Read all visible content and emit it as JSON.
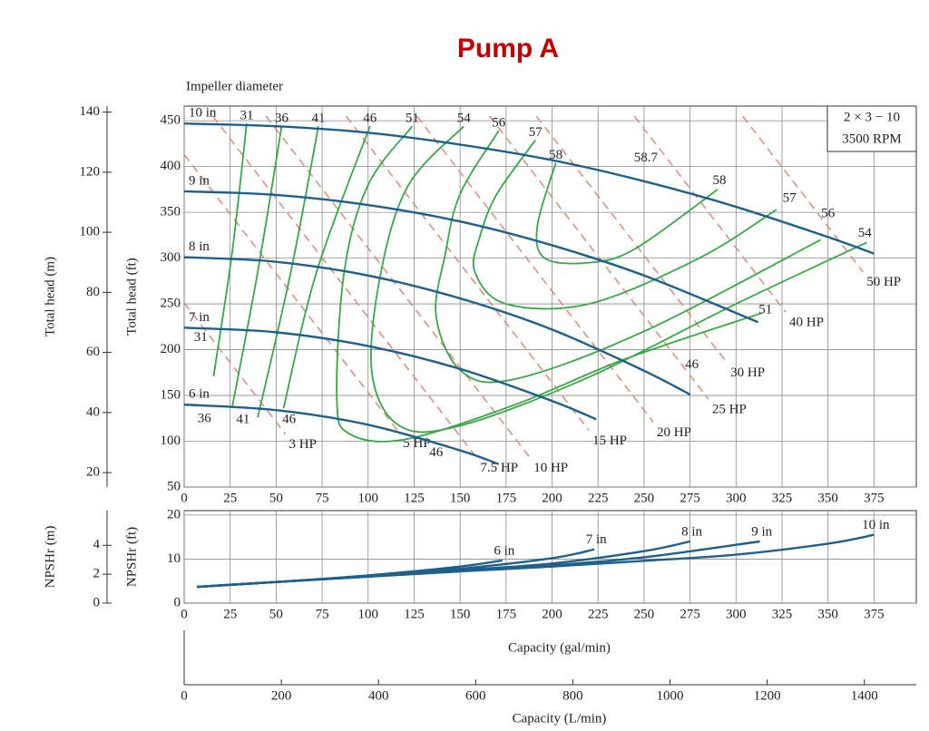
{
  "chart_data": [
    {
      "type": "line",
      "title": "Pump A",
      "note": "Impeller diameter",
      "model": [
        "2 × 3 − 10",
        "3500 RPM"
      ],
      "ylabel": "Total head (ft)",
      "y2label": "Total head (m)",
      "xlim": [
        0,
        398
      ],
      "xticks": [
        0,
        25,
        50,
        75,
        100,
        125,
        150,
        175,
        200,
        225,
        250,
        275,
        300,
        325,
        350,
        375
      ],
      "ylim": [
        50,
        466
      ],
      "yticks": [
        50,
        100,
        150,
        200,
        250,
        300,
        350,
        400,
        450
      ],
      "y2lim": [
        15.2,
        142
      ],
      "y2ticks": [
        20,
        40,
        60,
        80,
        100,
        120,
        140
      ],
      "grid": true,
      "series": [
        {
          "name": "10 in",
          "color": "#1f5f8b",
          "x": [
            0,
            50,
            100,
            150,
            200,
            250,
            300,
            350,
            375
          ],
          "values": [
            447,
            444,
            437,
            424,
            407,
            384,
            356,
            323,
            305
          ]
        },
        {
          "name": "9 in",
          "color": "#1f5f8b",
          "x": [
            0,
            50,
            100,
            150,
            200,
            250,
            312
          ],
          "values": [
            373,
            369,
            358,
            340,
            314,
            281,
            230
          ]
        },
        {
          "name": "8 in",
          "color": "#1f5f8b",
          "x": [
            0,
            50,
            100,
            150,
            200,
            250,
            275
          ],
          "values": [
            301,
            296,
            281,
            256,
            222,
            177,
            151
          ]
        },
        {
          "name": "7 in",
          "color": "#1f5f8b",
          "x": [
            0,
            50,
            100,
            150,
            200,
            224
          ],
          "values": [
            224,
            219,
            204,
            179,
            144,
            124
          ]
        },
        {
          "name": "6 in",
          "color": "#1f5f8b",
          "x": [
            0,
            50,
            100,
            150,
            171
          ],
          "values": [
            140,
            134,
            118,
            90,
            75
          ]
        }
      ],
      "efficiency_color": "#3aa648",
      "efficiency": [
        {
          "name": "31",
          "x": [
            34,
            26,
            16
          ],
          "values": [
            447,
            305,
            171
          ]
        },
        {
          "name": "36",
          "x": [
            53,
            40,
            26
          ],
          "values": [
            444,
            285,
            136
          ]
        },
        {
          "name": "41",
          "x": [
            73,
            58,
            40
          ],
          "values": [
            444,
            285,
            126
          ]
        },
        {
          "name": "46",
          "x": [
            101,
            72,
            54
          ],
          "values": [
            444,
            285,
            136
          ]
        },
        {
          "name": "51",
          "x": [
            124,
            100,
            87,
            83,
            90,
            120,
            180,
            240,
            314
          ],
          "values": [
            444,
            380,
            285,
            146,
            108,
            102,
            140,
            190,
            240
          ]
        },
        {
          "name": "54",
          "x": [
            152,
            122,
            107,
            102,
            117,
            150,
            220,
            300,
            371
          ],
          "values": [
            444,
            380,
            285,
            176,
            117,
            117,
            170,
            250,
            317
          ]
        },
        {
          "name": "56",
          "x": [
            171,
            150,
            142,
            137,
            151,
            180,
            250,
            346
          ],
          "values": [
            439,
            370,
            305,
            236,
            176,
            168,
            220,
            320
          ]
        },
        {
          "name": "57",
          "x": [
            191,
            170,
            161,
            158,
            175,
            220,
            280,
            322
          ],
          "values": [
            429,
            370,
            325,
            285,
            250,
            250,
            300,
            353
          ]
        },
        {
          "name": "58",
          "x": [
            202,
            192,
            196,
            220,
            245,
            290
          ],
          "values": [
            404,
            335,
            300,
            295,
            310,
            375
          ]
        }
      ],
      "power_color": "#d98c7a",
      "power": [
        {
          "name": "3 HP",
          "x": [
            0,
            55
          ],
          "values": [
            251,
            108
          ]
        },
        {
          "name": "5 HP",
          "x": [
            0,
            117
          ],
          "values": [
            413,
            109
          ]
        },
        {
          "name": "7.5 HP",
          "x": [
            15.5,
            159
          ],
          "values": [
            455,
            82
          ]
        },
        {
          "name": "10 HP",
          "x": [
            44.5,
            188
          ],
          "values": [
            455,
            82
          ]
        },
        {
          "name": "15 HP",
          "x": [
            88,
            220
          ],
          "values": [
            455,
            112
          ]
        },
        {
          "name": "20 HP",
          "x": [
            126.5,
            255
          ],
          "values": [
            455,
            121
          ]
        },
        {
          "name": "25 HP",
          "x": [
            166,
            285
          ],
          "values": [
            455,
            146
          ]
        },
        {
          "name": "30 HP",
          "x": [
            191.5,
            295
          ],
          "values": [
            455,
            186
          ]
        },
        {
          "name": "40 HP",
          "x": [
            244.7,
            327
          ],
          "values": [
            455,
            241
          ]
        },
        {
          "name": "50 HP",
          "x": [
            303.6,
            369
          ],
          "values": [
            455,
            285
          ]
        }
      ],
      "annotations": [
        {
          "text": "58.7",
          "x": 251,
          "y": 409
        },
        {
          "text": "58",
          "x": 291,
          "y": 384
        },
        {
          "text": "57",
          "x": 329,
          "y": 365
        },
        {
          "text": "56",
          "x": 350,
          "y": 348
        },
        {
          "text": "54",
          "x": 370,
          "y": 327
        },
        {
          "text": "51",
          "x": 316,
          "y": 243
        },
        {
          "text": "46",
          "x": 276,
          "y": 183
        },
        {
          "text": "31",
          "x": 9,
          "y": 213
        },
        {
          "text": "36",
          "x": 11,
          "y": 124
        },
        {
          "text": "41",
          "x": 32,
          "y": 123
        },
        {
          "text": "46",
          "x": 57,
          "y": 123
        },
        {
          "text": "46",
          "x": 137,
          "y": 87
        }
      ]
    },
    {
      "type": "line",
      "ylabel": "NPSHr (ft)",
      "y2label": "NPSHr (m)",
      "xlabel": "Capacity (gal/min)",
      "x2label": "Capacity (L/min)",
      "x2lim": [
        0,
        1507
      ],
      "x2ticks": [
        0,
        200,
        400,
        600,
        800,
        1000,
        1200,
        1400
      ],
      "xlim": [
        0,
        398
      ],
      "xticks": [
        0,
        25,
        50,
        75,
        100,
        125,
        150,
        175,
        200,
        225,
        250,
        275,
        300,
        325,
        350,
        375
      ],
      "ylim": [
        0,
        21
      ],
      "yticks": [
        0,
        10,
        20
      ],
      "y2lim": [
        0,
        6.4
      ],
      "y2ticks": [
        0,
        2,
        4
      ],
      "grid": true,
      "series": [
        {
          "name": "6 in",
          "color": "#1f5f8b",
          "x": [
            7,
            50,
            100,
            150,
            173
          ],
          "values": [
            3.7,
            4.8,
            6.3,
            8.3,
            9.7
          ]
        },
        {
          "name": "7 in",
          "color": "#1f5f8b",
          "x": [
            7,
            50,
            100,
            150,
            200,
            223
          ],
          "values": [
            3.7,
            4.8,
            6.2,
            7.8,
            10.2,
            12.2
          ]
        },
        {
          "name": "8 in",
          "color": "#1f5f8b",
          "x": [
            7,
            50,
            100,
            150,
            200,
            250,
            275
          ],
          "values": [
            3.7,
            4.8,
            6.1,
            7.5,
            9.0,
            11.8,
            14
          ]
        },
        {
          "name": "9 in",
          "color": "#1f5f8b",
          "x": [
            7,
            50,
            100,
            150,
            200,
            250,
            313
          ],
          "values": [
            3.7,
            4.8,
            6.0,
            7.3,
            8.6,
            10.4,
            14
          ]
        },
        {
          "name": "10 in",
          "color": "#1f5f8b",
          "x": [
            7,
            50,
            100,
            150,
            200,
            250,
            300,
            350,
            375
          ],
          "values": [
            3.7,
            4.8,
            6.0,
            7.2,
            8.3,
            9.6,
            11,
            13.5,
            15.5
          ]
        }
      ]
    }
  ]
}
